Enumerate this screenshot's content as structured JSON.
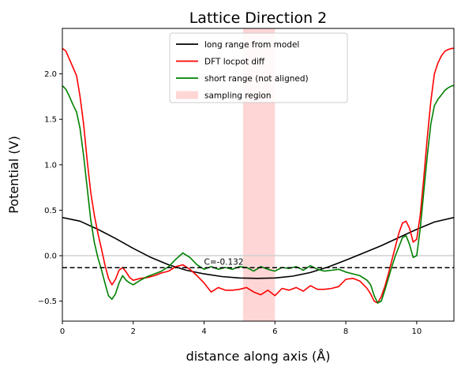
{
  "chart_data": {
    "type": "line",
    "title": "Lattice Direction 2",
    "xlabel": "distance along axis (Å)",
    "ylabel": "Potential (V)",
    "xlim": [
      0,
      11.05
    ],
    "ylim": [
      -0.72,
      2.5
    ],
    "xticks": [
      0,
      2,
      4,
      6,
      8,
      10
    ],
    "yticks": [
      -0.5,
      0.0,
      0.5,
      1.0,
      1.5,
      2.0
    ],
    "ytick_labels": [
      "−0.5",
      "0.0",
      "0.5",
      "1.0",
      "1.5",
      "2.0"
    ],
    "grid": false,
    "legend_position": "top-center",
    "sampling_region": {
      "label": "sampling region",
      "x": [
        5.1,
        6.0
      ],
      "color": "#ffd6d6"
    },
    "zero_line": {
      "y": 0.0,
      "color": "#d0d0d0"
    },
    "constant_line": {
      "y": -0.132,
      "label": "C=-0.132",
      "label_x": 4.0
    },
    "series": [
      {
        "name": "long range from model",
        "color": "#000000",
        "x": [
          0,
          0.5,
          1,
          1.5,
          2,
          2.5,
          3,
          3.5,
          4,
          4.5,
          5,
          5.5,
          6,
          6.5,
          7,
          7.5,
          8,
          8.5,
          9,
          9.5,
          10,
          10.5,
          11.05
        ],
        "y": [
          0.42,
          0.38,
          0.29,
          0.19,
          0.08,
          -0.02,
          -0.1,
          -0.16,
          -0.2,
          -0.23,
          -0.245,
          -0.25,
          -0.245,
          -0.225,
          -0.185,
          -0.125,
          -0.05,
          0.03,
          0.11,
          0.2,
          0.29,
          0.37,
          0.42
        ]
      },
      {
        "name": "DFT locpot diff",
        "color": "#ff0000",
        "x": [
          0,
          0.1,
          0.2,
          0.3,
          0.4,
          0.5,
          0.6,
          0.7,
          0.8,
          0.9,
          1.0,
          1.1,
          1.2,
          1.3,
          1.4,
          1.5,
          1.6,
          1.7,
          1.8,
          1.9,
          2.0,
          2.2,
          2.4,
          2.6,
          2.8,
          3.0,
          3.2,
          3.4,
          3.6,
          3.8,
          4.0,
          4.2,
          4.4,
          4.6,
          4.8,
          5.0,
          5.2,
          5.4,
          5.6,
          5.8,
          6.0,
          6.2,
          6.4,
          6.6,
          6.8,
          7.0,
          7.2,
          7.4,
          7.6,
          7.8,
          8.0,
          8.2,
          8.4,
          8.6,
          8.7,
          8.8,
          8.9,
          9.0,
          9.1,
          9.2,
          9.3,
          9.4,
          9.5,
          9.6,
          9.7,
          9.8,
          9.9,
          10.0,
          10.1,
          10.2,
          10.3,
          10.4,
          10.5,
          10.6,
          10.7,
          10.8,
          10.9,
          11.0,
          11.05
        ],
        "y": [
          2.28,
          2.25,
          2.16,
          2.07,
          1.98,
          1.75,
          1.45,
          1.05,
          0.7,
          0.45,
          0.25,
          0.08,
          -0.1,
          -0.25,
          -0.32,
          -0.26,
          -0.16,
          -0.13,
          -0.18,
          -0.24,
          -0.27,
          -0.25,
          -0.24,
          -0.22,
          -0.19,
          -0.17,
          -0.12,
          -0.1,
          -0.15,
          -0.22,
          -0.3,
          -0.4,
          -0.35,
          -0.38,
          -0.38,
          -0.37,
          -0.35,
          -0.4,
          -0.43,
          -0.38,
          -0.44,
          -0.36,
          -0.38,
          -0.35,
          -0.39,
          -0.33,
          -0.37,
          -0.37,
          -0.36,
          -0.34,
          -0.26,
          -0.25,
          -0.28,
          -0.36,
          -0.42,
          -0.5,
          -0.52,
          -0.45,
          -0.34,
          -0.2,
          -0.05,
          0.1,
          0.25,
          0.36,
          0.38,
          0.3,
          0.15,
          0.18,
          0.45,
          0.85,
          1.3,
          1.7,
          2.0,
          2.12,
          2.2,
          2.25,
          2.27,
          2.28,
          2.28
        ]
      },
      {
        "name": "short range (not aligned)",
        "color": "#008000",
        "x": [
          0,
          0.1,
          0.2,
          0.3,
          0.4,
          0.5,
          0.6,
          0.7,
          0.8,
          0.9,
          1.0,
          1.1,
          1.2,
          1.3,
          1.4,
          1.5,
          1.6,
          1.7,
          1.8,
          1.9,
          2.0,
          2.2,
          2.4,
          2.6,
          2.8,
          3.0,
          3.2,
          3.4,
          3.6,
          3.8,
          4.0,
          4.2,
          4.4,
          4.6,
          4.8,
          5.0,
          5.2,
          5.4,
          5.6,
          5.8,
          6.0,
          6.2,
          6.4,
          6.6,
          6.8,
          7.0,
          7.2,
          7.4,
          7.6,
          7.8,
          8.0,
          8.2,
          8.4,
          8.6,
          8.7,
          8.8,
          8.9,
          9.0,
          9.1,
          9.2,
          9.3,
          9.4,
          9.5,
          9.6,
          9.7,
          9.8,
          9.9,
          10.0,
          10.1,
          10.2,
          10.3,
          10.4,
          10.5,
          10.6,
          10.7,
          10.8,
          10.9,
          11.0,
          11.05
        ],
        "y": [
          1.87,
          1.83,
          1.75,
          1.66,
          1.58,
          1.4,
          1.1,
          0.75,
          0.4,
          0.15,
          -0.02,
          -0.15,
          -0.3,
          -0.44,
          -0.48,
          -0.42,
          -0.3,
          -0.22,
          -0.27,
          -0.3,
          -0.32,
          -0.27,
          -0.23,
          -0.2,
          -0.17,
          -0.12,
          -0.04,
          0.03,
          -0.02,
          -0.1,
          -0.15,
          -0.12,
          -0.15,
          -0.13,
          -0.15,
          -0.12,
          -0.13,
          -0.17,
          -0.12,
          -0.15,
          -0.17,
          -0.13,
          -0.14,
          -0.12,
          -0.16,
          -0.11,
          -0.15,
          -0.17,
          -0.16,
          -0.15,
          -0.18,
          -0.2,
          -0.22,
          -0.27,
          -0.32,
          -0.44,
          -0.52,
          -0.5,
          -0.38,
          -0.25,
          -0.12,
          0.0,
          0.1,
          0.2,
          0.22,
          0.12,
          -0.02,
          0.0,
          0.3,
          0.7,
          1.1,
          1.45,
          1.65,
          1.72,
          1.77,
          1.82,
          1.85,
          1.87,
          1.87
        ]
      }
    ]
  }
}
